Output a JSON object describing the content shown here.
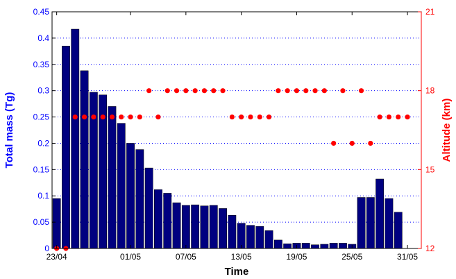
{
  "chart_data": {
    "type": "bar",
    "title": "",
    "xlabel": "Time",
    "ylabel": "Total mass (Tg)",
    "y2label": "Altitude (km)",
    "ylim": [
      0,
      0.45
    ],
    "y2lim": [
      12,
      21
    ],
    "grid": true,
    "x_dates": [
      "23/04",
      "24/04",
      "25/04",
      "26/04",
      "27/04",
      "28/04",
      "29/04",
      "30/04",
      "01/05",
      "02/05",
      "03/05",
      "04/05",
      "05/05",
      "06/05",
      "07/05",
      "08/05",
      "09/05",
      "10/05",
      "11/05",
      "12/05",
      "13/05",
      "14/05",
      "15/05",
      "16/05",
      "17/05",
      "18/05",
      "19/05",
      "20/05",
      "21/05",
      "22/05",
      "23/05",
      "24/05",
      "25/05",
      "26/05",
      "27/05",
      "28/05",
      "29/05",
      "30/05",
      "31/05",
      "01/06"
    ],
    "x_ticks": [
      "23/04",
      "01/05",
      "07/05",
      "13/05",
      "19/05",
      "25/05",
      "31/05"
    ],
    "y_ticks": [
      "0",
      "0.05",
      "0.1",
      "0.15",
      "0.2",
      "0.25",
      "0.3",
      "0.35",
      "0.4",
      "0.45"
    ],
    "y2_ticks": [
      "12",
      "15",
      "18",
      "21"
    ],
    "series": [
      {
        "axis": "left",
        "kind": "bar",
        "color": "#000080",
        "values": [
          0.095,
          0.385,
          0.417,
          0.338,
          0.297,
          0.292,
          0.27,
          0.238,
          0.2,
          0.188,
          0.153,
          0.112,
          0.105,
          0.087,
          0.082,
          0.083,
          0.081,
          0.082,
          0.076,
          0.063,
          0.048,
          0.044,
          0.042,
          0.034,
          0.016,
          0.009,
          0.01,
          0.01,
          0.007,
          0.008,
          0.01,
          0.01,
          0.008,
          0.097,
          0.097,
          0.132,
          0.095,
          0.069
        ]
      },
      {
        "axis": "right",
        "kind": "scatter",
        "color": "#ff0000",
        "points": [
          [
            "23/04",
            12
          ],
          [
            "24/04",
            12
          ],
          [
            "25/04",
            17
          ],
          [
            "26/04",
            17
          ],
          [
            "27/04",
            17
          ],
          [
            "28/04",
            17
          ],
          [
            "29/04",
            17
          ],
          [
            "30/04",
            17
          ],
          [
            "01/05",
            17
          ],
          [
            "02/05",
            17
          ],
          [
            "03/05",
            18
          ],
          [
            "04/05",
            17
          ],
          [
            "05/05",
            18
          ],
          [
            "06/05",
            18
          ],
          [
            "07/05",
            18
          ],
          [
            "08/05",
            18
          ],
          [
            "09/05",
            18
          ],
          [
            "10/05",
            18
          ],
          [
            "11/05",
            18
          ],
          [
            "12/05",
            17
          ],
          [
            "13/05",
            17
          ],
          [
            "14/05",
            17
          ],
          [
            "15/05",
            17
          ],
          [
            "16/05",
            17
          ],
          [
            "17/05",
            18
          ],
          [
            "18/05",
            18
          ],
          [
            "19/05",
            18
          ],
          [
            "20/05",
            18
          ],
          [
            "21/05",
            18
          ],
          [
            "22/05",
            18
          ],
          [
            "23/05",
            16
          ],
          [
            "24/05",
            18
          ],
          [
            "25/05",
            16
          ],
          [
            "26/05",
            18
          ],
          [
            "27/05",
            16
          ],
          [
            "28/05",
            17
          ],
          [
            "29/05",
            17
          ],
          [
            "30/05",
            17
          ],
          [
            "31/05",
            17
          ]
        ]
      }
    ]
  }
}
